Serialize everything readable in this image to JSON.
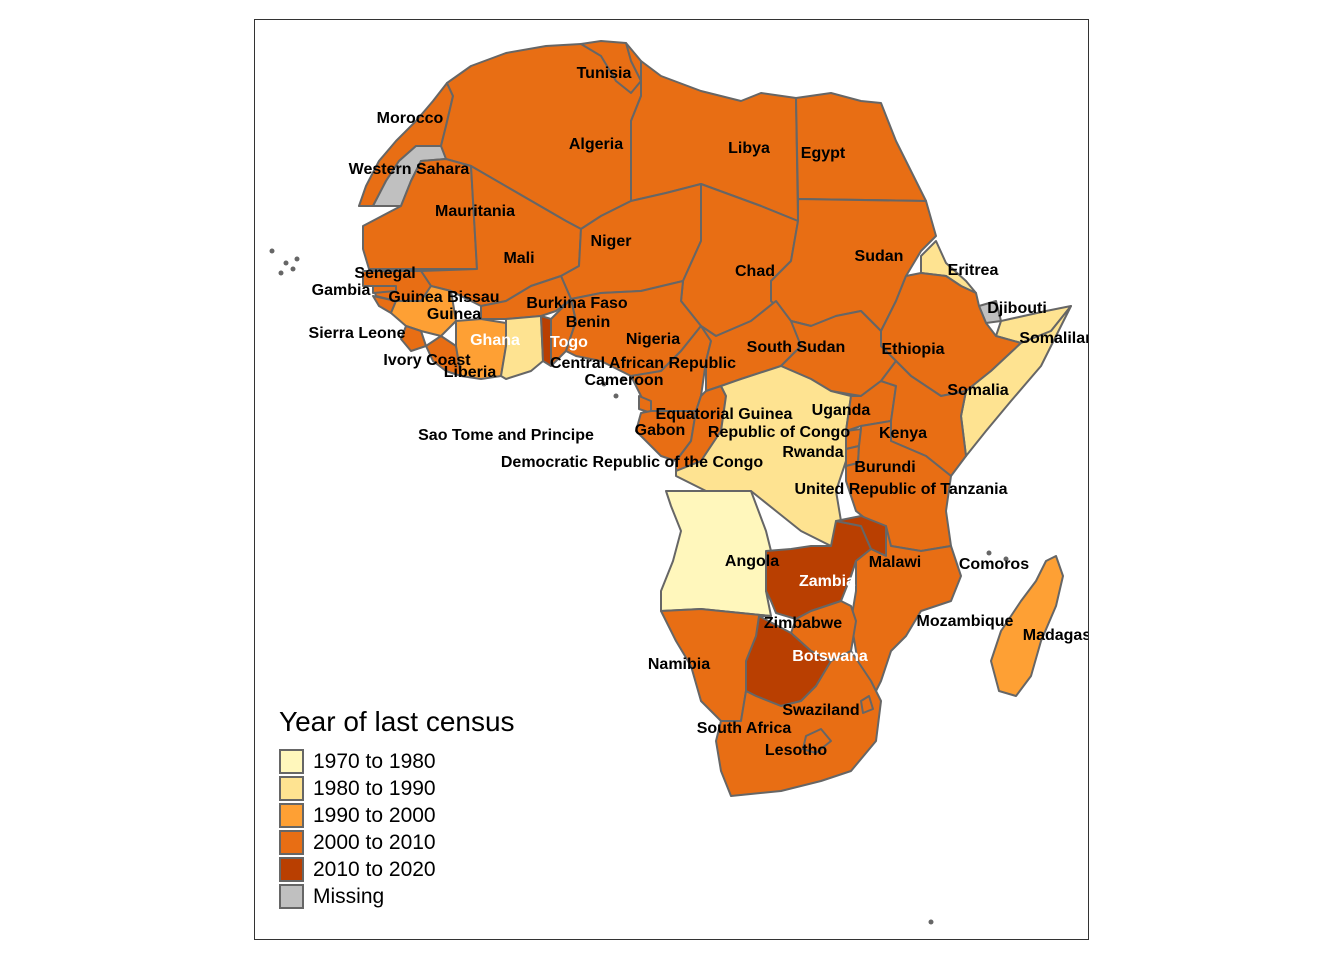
{
  "legend": {
    "title": "Year of last census",
    "items": [
      {
        "label": "1970 to 1980",
        "color": "#FFF7BC"
      },
      {
        "label": "1980 to 1990",
        "color": "#FEE391"
      },
      {
        "label": "1990 to 2000",
        "color": "#FEA034"
      },
      {
        "label": "2000 to 2010",
        "color": "#E86E14"
      },
      {
        "label": "2010 to 2020",
        "color": "#B93F01"
      },
      {
        "label": "Missing",
        "color": "#C0C0C0"
      }
    ]
  },
  "countries": [
    {
      "name": "Tunisia",
      "category": "2000 to 2010"
    },
    {
      "name": "Morocco",
      "category": "2000 to 2010"
    },
    {
      "name": "Algeria",
      "category": "2000 to 2010"
    },
    {
      "name": "Libya",
      "category": "2000 to 2010"
    },
    {
      "name": "Egypt",
      "category": "2000 to 2010"
    },
    {
      "name": "Western Sahara",
      "category": "Missing"
    },
    {
      "name": "Mauritania",
      "category": "2000 to 2010"
    },
    {
      "name": "Niger",
      "category": "2000 to 2010"
    },
    {
      "name": "Sudan",
      "category": "2000 to 2010"
    },
    {
      "name": "Mali",
      "category": "2000 to 2010"
    },
    {
      "name": "Chad",
      "category": "2000 to 2010"
    },
    {
      "name": "Eritrea",
      "category": "1980 to 1990"
    },
    {
      "name": "Senegal",
      "category": "2000 to 2010"
    },
    {
      "name": "Gambia",
      "category": "2000 to 2010"
    },
    {
      "name": "Guinea Bissau",
      "category": "2000 to 2010"
    },
    {
      "name": "Burkina Faso",
      "category": "2000 to 2010"
    },
    {
      "name": "Djibouti",
      "category": "Missing"
    },
    {
      "name": "Guinea",
      "category": "1990 to 2000"
    },
    {
      "name": "Benin",
      "category": "2000 to 2010"
    },
    {
      "name": "Sierra Leone",
      "category": "2000 to 2010"
    },
    {
      "name": "Ghana",
      "category": "1980 to 1990"
    },
    {
      "name": "Togo",
      "category": "2010 to 2020"
    },
    {
      "name": "Nigeria",
      "category": "2000 to 2010"
    },
    {
      "name": "Somaliland",
      "category": "1980 to 1990"
    },
    {
      "name": "South Sudan",
      "category": "2000 to 2010"
    },
    {
      "name": "Ethiopia",
      "category": "2000 to 2010"
    },
    {
      "name": "Ivory Coast",
      "category": "1990 to 2000"
    },
    {
      "name": "Central African Republic",
      "category": "2000 to 2010"
    },
    {
      "name": "Liberia",
      "category": "2000 to 2010"
    },
    {
      "name": "Cameroon",
      "category": "2000 to 2010"
    },
    {
      "name": "Somalia",
      "category": "1980 to 1990"
    },
    {
      "name": "Uganda",
      "category": "2000 to 2010"
    },
    {
      "name": "Equatorial Guinea",
      "category": "2000 to 2010"
    },
    {
      "name": "Gabon",
      "category": "2000 to 2010"
    },
    {
      "name": "Republic of Congo",
      "category": "2000 to 2010"
    },
    {
      "name": "Kenya",
      "category": "2000 to 2010"
    },
    {
      "name": "Sao Tome and Principe",
      "category": "2000 to 2010"
    },
    {
      "name": "Rwanda",
      "category": "2000 to 2010"
    },
    {
      "name": "Democratic Republic of the Congo",
      "category": "1980 to 1990"
    },
    {
      "name": "Burundi",
      "category": "2000 to 2010"
    },
    {
      "name": "United Republic of Tanzania",
      "category": "2000 to 2010"
    },
    {
      "name": "Angola",
      "category": "1970 to 1980"
    },
    {
      "name": "Malawi",
      "category": "2010 to 2020"
    },
    {
      "name": "Comoros",
      "category": "2000 to 2010"
    },
    {
      "name": "Zambia",
      "category": "2010 to 2020"
    },
    {
      "name": "Mozambique",
      "category": "2000 to 2010"
    },
    {
      "name": "Zimbabwe",
      "category": "2000 to 2010"
    },
    {
      "name": "Madagascar",
      "category": "1990 to 2000"
    },
    {
      "name": "Namibia",
      "category": "2000 to 2010"
    },
    {
      "name": "Botswana",
      "category": "2010 to 2020"
    },
    {
      "name": "Swaziland",
      "category": "2000 to 2010"
    },
    {
      "name": "South Africa",
      "category": "2000 to 2010"
    },
    {
      "name": "Lesotho",
      "category": "2000 to 2010"
    }
  ]
}
